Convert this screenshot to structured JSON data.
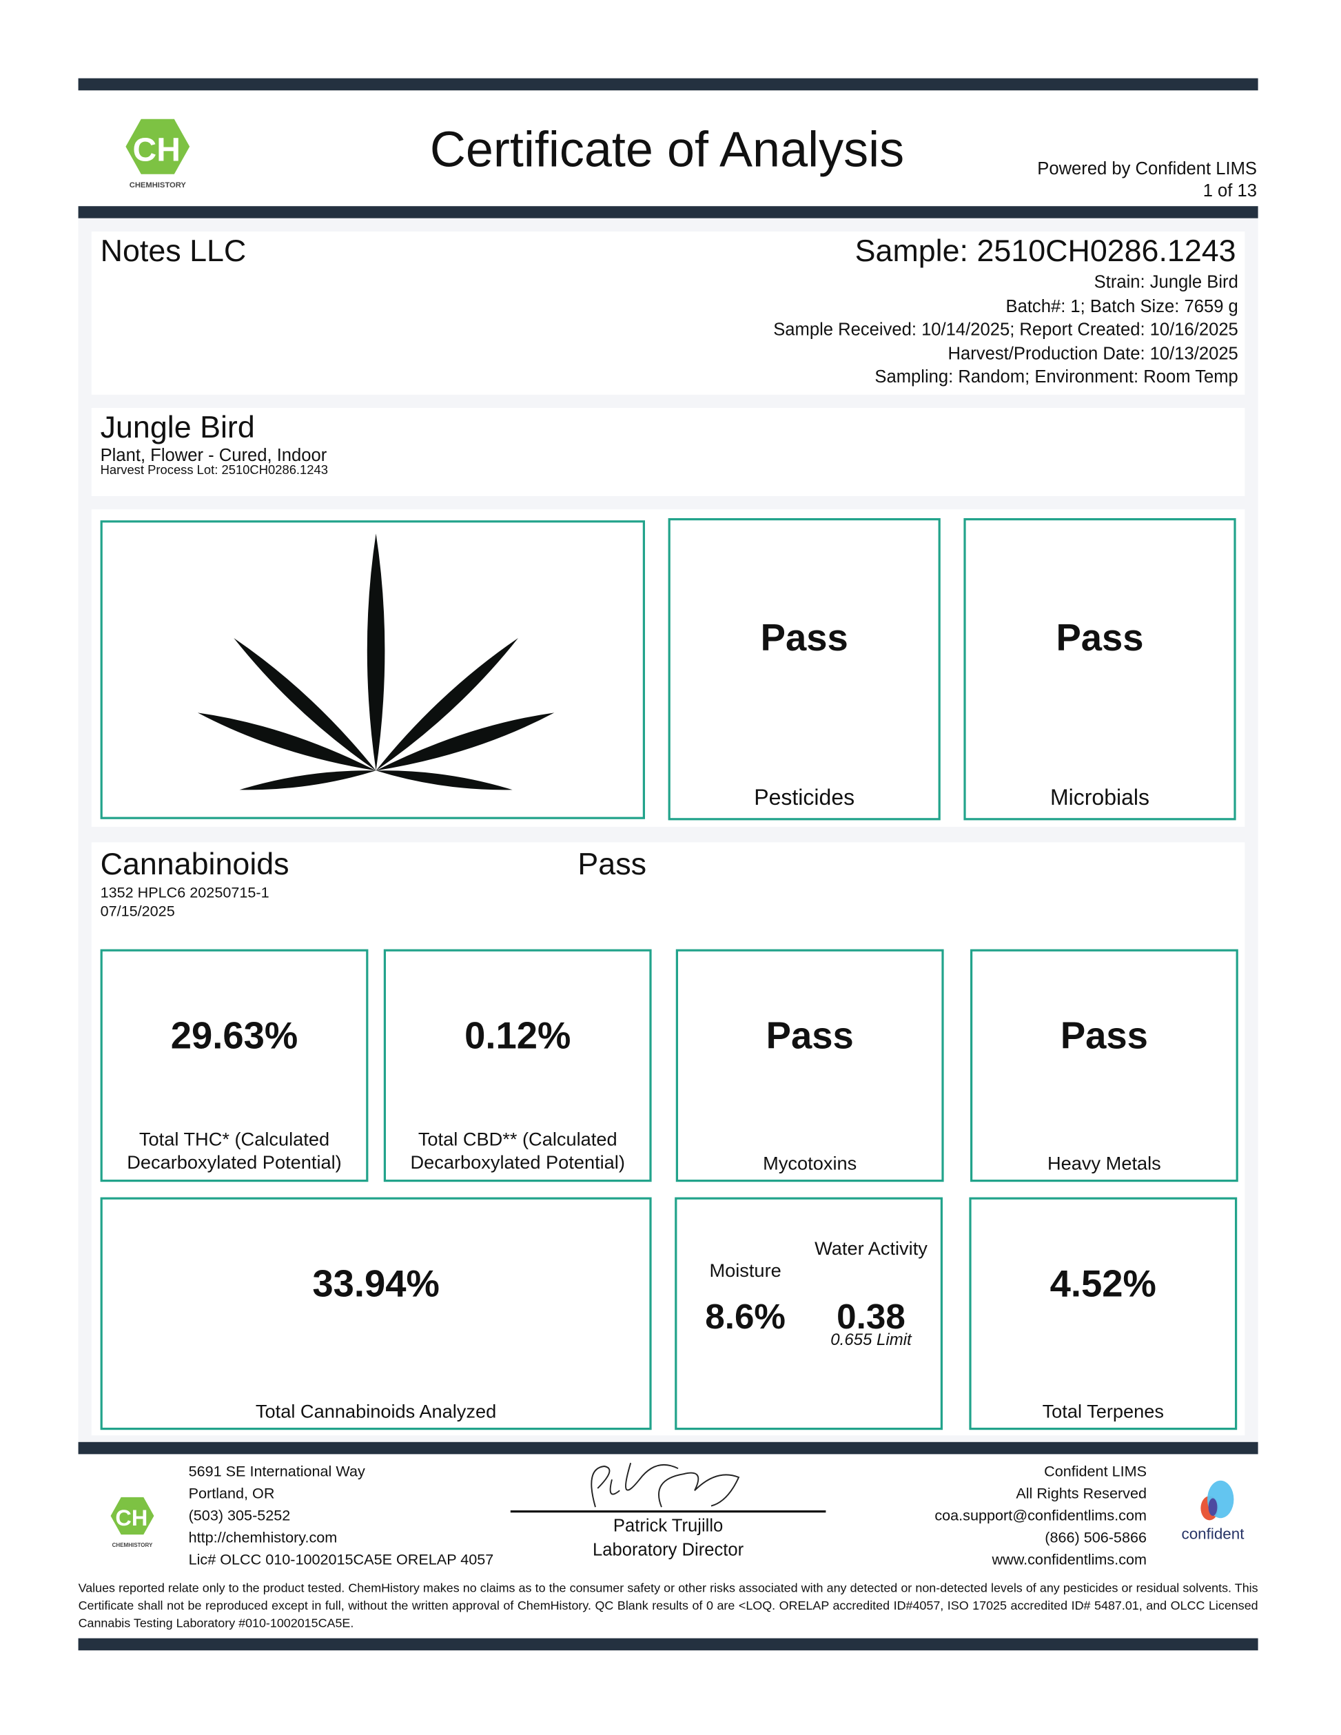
{
  "header": {
    "title": "Certificate of Analysis",
    "powered_by": "Powered by Confident LIMS",
    "page": "1 of 13",
    "logo_text": "CH",
    "logo_name": "CHEMHISTORY"
  },
  "client": {
    "name": "Notes LLC",
    "sample": "Sample: 2510CH0286.1243",
    "strain": "Strain: Jungle Bird",
    "batch": "Batch#: 1; Batch Size: 7659 g",
    "dates": "Sample Received: 10/14/2025; Report Created: 10/16/2025",
    "harvest": "Harvest/Production Date: 10/13/2025",
    "sampling": "Sampling: Random; Environment: Room Temp"
  },
  "product": {
    "name": "Jungle Bird",
    "type": "Plant, Flower - Cured, Indoor",
    "lot": "Harvest Process Lot: 2510CH0286.1243"
  },
  "summary": {
    "pesticides": {
      "result": "Pass",
      "label": "Pesticides"
    },
    "microbials": {
      "result": "Pass",
      "label": "Microbials"
    }
  },
  "cannabinoids": {
    "title": "Cannabinoids",
    "result": "Pass",
    "method": "1352 HPLC6 20250715-1",
    "date": "07/15/2025",
    "thc": {
      "value": "29.63%",
      "label": "Total THC* (Calculated Decarboxylated Potential)"
    },
    "cbd": {
      "value": "0.12%",
      "label": "Total CBD** (Calculated Decarboxylated Potential)"
    },
    "mycotoxins": {
      "result": "Pass",
      "label": "Mycotoxins"
    },
    "heavy_metals": {
      "result": "Pass",
      "label": "Heavy Metals"
    },
    "total": {
      "value": "33.94%",
      "label": "Total Cannabinoids Analyzed"
    },
    "moisture": {
      "label": "Moisture",
      "value": "8.6%"
    },
    "water_activity": {
      "label": "Water Activity",
      "value": "0.38",
      "limit": "0.655 Limit"
    },
    "terpenes": {
      "value": "4.52%",
      "label": "Total Terpenes"
    }
  },
  "footer": {
    "address": [
      "5691 SE International Way",
      "Portland, OR",
      "(503) 305-5252",
      "http://chemhistory.com",
      "Lic# OLCC 010-1002015CA5E ORELAP 4057"
    ],
    "signer": "Patrick Trujillo",
    "signer_title": "Laboratory Director",
    "lims": [
      "Confident LIMS",
      "All Rights Reserved",
      "coa.support@confidentlims.com",
      "(866) 506-5866",
      "www.confidentlims.com"
    ],
    "lims_logo": "confident",
    "disclaimer": "Values reported relate only to the product tested. ChemHistory makes no claims as to the consumer safety or other risks associated with any detected or non-detected levels of any pesticides or residual solvents. This Certificate shall not be reproduced except in full, without the written approval of ChemHistory. QC Blank results of 0 are <LOQ.  ORELAP accredited ID#4057, ISO 17025 accredited ID# 5487.01, and OLCC Licensed Cannabis Testing Laboratory #010-1002015CA5E."
  },
  "colors": {
    "bar": "#243140",
    "accent": "#22a38b",
    "logo_green": "#7dc243"
  }
}
